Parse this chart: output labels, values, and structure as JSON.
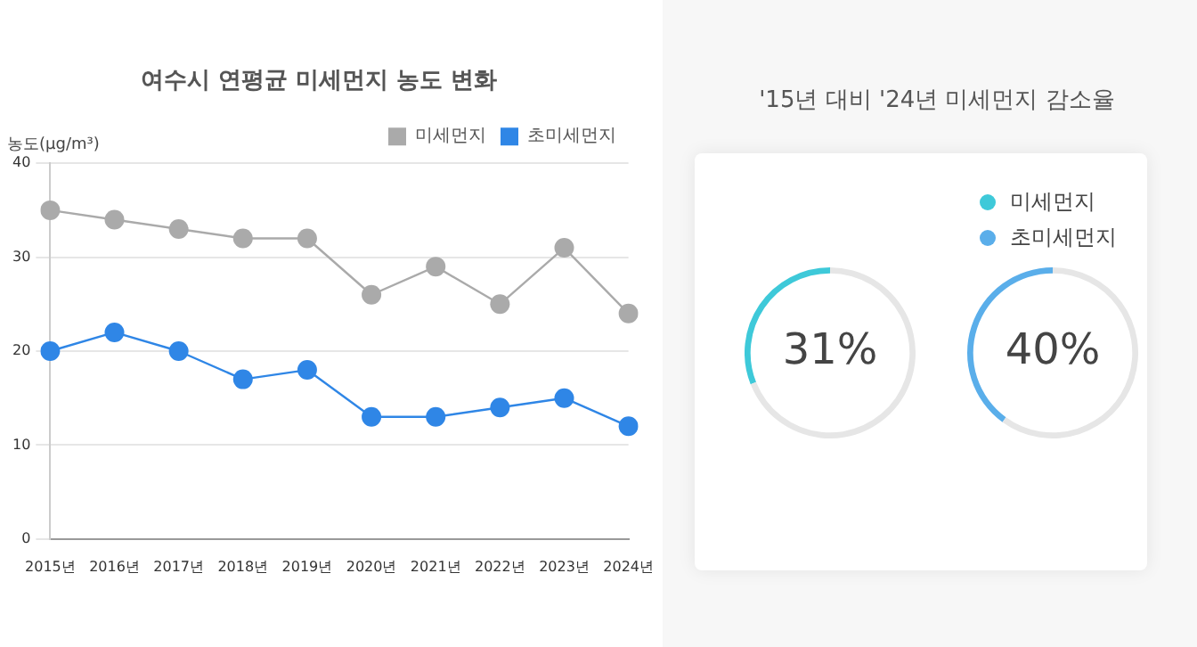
{
  "chart_data": [
    {
      "type": "line",
      "title": "여수시 연평균 미세먼지 농도 변화",
      "ylabel": "농도(μg/m³)",
      "categories": [
        "2015년",
        "2016년",
        "2017년",
        "2018년",
        "2019년",
        "2020년",
        "2021년",
        "2022년",
        "2023년",
        "2024년"
      ],
      "series": [
        {
          "name": "미세먼지",
          "color": "#aaaaaa",
          "values": [
            35,
            34,
            33,
            32,
            32,
            26,
            29,
            25,
            31,
            24
          ]
        },
        {
          "name": "초미세먼지",
          "color": "#2f86e6",
          "values": [
            20,
            22,
            20,
            17,
            18,
            13,
            13,
            14,
            15,
            12
          ]
        }
      ],
      "ylim": [
        0,
        40
      ],
      "yticks": [
        0,
        10,
        20,
        30,
        40
      ],
      "grid": "y",
      "legend": "top right",
      "marker": "circle",
      "line_style": "solid"
    },
    {
      "type": "donut",
      "title": "'15년 대비 '24년 미세먼지 감소율",
      "categories": [
        "미세먼지",
        null
      ],
      "values": [
        31,
        69
      ],
      "colors": [
        "#3ec9d9",
        "#e6e6e6"
      ],
      "value_labels": [
        "31%",
        null
      ],
      "legend": "top right"
    },
    {
      "type": "donut",
      "categories": [
        "초미세먼지",
        null
      ],
      "values": [
        40,
        60
      ],
      "colors": [
        "#5aaeea",
        "#e6e6e6"
      ],
      "value_labels": [
        "40%",
        null
      ],
      "legend": "top right"
    }
  ]
}
